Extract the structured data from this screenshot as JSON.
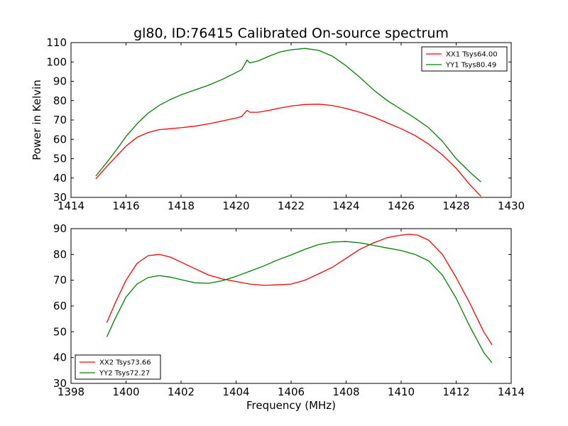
{
  "figure": {
    "title": "gl80, ID:76415 Calibrated On-source spectrum"
  },
  "chart_data": [
    {
      "type": "line",
      "title": "gl80, ID:76415 Calibrated On-source spectrum",
      "xlabel": "",
      "ylabel": "Power in Kelvin",
      "xlim": [
        1414,
        1430
      ],
      "ylim": [
        30,
        110
      ],
      "xticks": [
        1414,
        1416,
        1418,
        1420,
        1422,
        1424,
        1426,
        1428,
        1430
      ],
      "yticks": [
        30,
        40,
        50,
        60,
        70,
        80,
        90,
        100,
        110
      ],
      "grid": false,
      "legend_position": "top-right",
      "series": [
        {
          "name": "XX1 Tsys64.00",
          "color": "#ff0000",
          "x": [
            1414.9,
            1415.3,
            1415.7,
            1416.0,
            1416.4,
            1416.8,
            1417.2,
            1417.6,
            1418.0,
            1418.5,
            1419.0,
            1419.5,
            1420.0,
            1420.2,
            1420.4,
            1420.5,
            1420.8,
            1421.2,
            1421.6,
            1422.0,
            1422.5,
            1423.0,
            1423.5,
            1424.0,
            1424.5,
            1425.0,
            1425.5,
            1426.0,
            1426.5,
            1427.0,
            1427.5,
            1428.0,
            1428.5,
            1428.9
          ],
          "y": [
            39.5,
            46,
            52,
            56.5,
            61,
            63.5,
            65,
            65.5,
            66,
            66.8,
            68,
            69.5,
            71,
            71.8,
            75,
            74,
            74,
            75,
            76.2,
            77.2,
            78,
            78.2,
            77.5,
            76,
            74,
            71.5,
            68.5,
            65.5,
            62,
            57.5,
            52,
            45,
            36.5,
            30.5
          ]
        },
        {
          "name": "YY1 Tsys80.49",
          "color": "#008000",
          "x": [
            1414.9,
            1415.3,
            1415.7,
            1416.0,
            1416.4,
            1416.8,
            1417.2,
            1417.6,
            1418.0,
            1418.5,
            1419.0,
            1419.5,
            1420.0,
            1420.2,
            1420.4,
            1420.5,
            1420.8,
            1421.2,
            1421.6,
            1422.0,
            1422.5,
            1423.0,
            1423.5,
            1424.0,
            1424.5,
            1425.0,
            1425.5,
            1426.0,
            1426.5,
            1427.0,
            1427.5,
            1428.0,
            1428.5,
            1428.9
          ],
          "y": [
            41,
            48,
            55.5,
            61.5,
            68,
            73.5,
            77.5,
            80.5,
            83,
            85.5,
            88,
            91,
            94.5,
            96,
            101,
            99.5,
            100.5,
            103,
            105.2,
            106.3,
            107,
            106,
            103,
            98,
            92,
            85.5,
            80,
            75.5,
            71,
            66,
            59,
            50,
            43,
            38
          ]
        }
      ]
    },
    {
      "type": "line",
      "title": "",
      "xlabel": "Frequency (MHz)",
      "ylabel": "",
      "xlim": [
        1398,
        1414
      ],
      "ylim": [
        30,
        90
      ],
      "xticks": [
        1398,
        1400,
        1402,
        1404,
        1406,
        1408,
        1410,
        1412,
        1414
      ],
      "yticks": [
        30,
        40,
        50,
        60,
        70,
        80,
        90
      ],
      "grid": false,
      "legend_position": "bottom-left",
      "series": [
        {
          "name": "XX2 Tsys73.66",
          "color": "#ff0000",
          "x": [
            1399.3,
            1399.6,
            1400.0,
            1400.4,
            1400.8,
            1401.2,
            1401.6,
            1402.0,
            1402.5,
            1403.0,
            1403.5,
            1404.0,
            1404.5,
            1405.0,
            1405.5,
            1406.0,
            1406.5,
            1407.0,
            1407.5,
            1408.0,
            1408.5,
            1409.0,
            1409.5,
            1410.0,
            1410.3,
            1410.6,
            1411.0,
            1411.5,
            1412.0,
            1412.5,
            1413.0,
            1413.3
          ],
          "y": [
            53.5,
            61,
            70,
            76.5,
            79.5,
            80,
            79,
            77,
            74.5,
            72,
            70.5,
            69.5,
            68.5,
            68,
            68.2,
            68.5,
            70,
            72.5,
            75,
            78.5,
            82,
            84.5,
            86.5,
            87.5,
            87.8,
            87.5,
            85.5,
            80,
            71,
            61,
            50,
            45
          ]
        },
        {
          "name": "YY2 Tsys72.27",
          "color": "#008000",
          "x": [
            1399.3,
            1399.6,
            1400.0,
            1400.4,
            1400.8,
            1401.2,
            1401.6,
            1402.0,
            1402.5,
            1403.0,
            1403.5,
            1404.0,
            1404.5,
            1405.0,
            1405.5,
            1406.0,
            1406.5,
            1407.0,
            1407.5,
            1408.0,
            1408.5,
            1409.0,
            1409.5,
            1410.0,
            1410.5,
            1411.0,
            1411.5,
            1412.0,
            1412.5,
            1413.0,
            1413.3
          ],
          "y": [
            48,
            55,
            63.5,
            68.5,
            71,
            71.8,
            71.2,
            70.2,
            69,
            68.8,
            69.8,
            71.5,
            73.5,
            75.5,
            77.8,
            79.8,
            82,
            83.8,
            84.8,
            85,
            84.5,
            83.5,
            82.5,
            81.5,
            80,
            77.5,
            72,
            63,
            52,
            42,
            38
          ]
        }
      ]
    }
  ]
}
